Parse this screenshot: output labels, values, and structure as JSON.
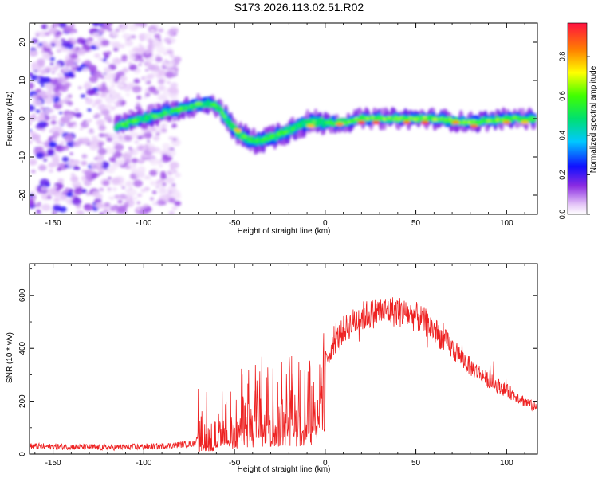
{
  "title": "S173.2026.113.02.51.R02",
  "chart_data": [
    {
      "type": "heatmap",
      "xlabel": "Height of straight line (km)",
      "ylabel": "Frequency (Hz)",
      "xlim": [
        -163,
        117
      ],
      "ylim": [
        -25,
        25
      ],
      "xticks": [
        "-150",
        "-100",
        "-50",
        "0",
        "50",
        "100"
      ],
      "xtick_values": [
        -150,
        -100,
        -50,
        0,
        50,
        100
      ],
      "yticks": [
        "-20",
        "-10",
        "0",
        "10",
        "20"
      ],
      "ytick_values": [
        -20,
        -10,
        0,
        10,
        20
      ],
      "colorbar": {
        "label": "Normalized spectral amplitude",
        "range": [
          0,
          0.97
        ],
        "ticks": [
          "0.0",
          "0.2",
          "0.4",
          "0.6",
          "0.8"
        ],
        "tick_values": [
          0.0,
          0.2,
          0.4,
          0.6,
          0.8
        ]
      },
      "ridge": {
        "description_points_x": [
          -115,
          -100,
          -85,
          -75,
          -68,
          -62,
          -57,
          -52,
          -47,
          -40,
          -30,
          -20,
          -10,
          0,
          10,
          20,
          40,
          60,
          80,
          100,
          115
        ],
        "description_points_y": [
          -2,
          0,
          2,
          3,
          4,
          4,
          2,
          -2,
          -4,
          -6,
          -5,
          -3,
          -1,
          -1,
          -1,
          0,
          0,
          0,
          -1,
          0,
          0
        ]
      }
    },
    {
      "type": "line",
      "xlabel": "Height of straight line (km)",
      "ylabel": "SNR (10 * v/v)",
      "xlim": [
        -163,
        117
      ],
      "ylim": [
        0,
        720
      ],
      "xticks": [
        "-150",
        "-100",
        "-50",
        "0",
        "50",
        "100"
      ],
      "xtick_values": [
        -150,
        -100,
        -50,
        0,
        50,
        100
      ],
      "yticks": [
        "0",
        "200",
        "400",
        "600"
      ],
      "ytick_values": [
        0,
        200,
        400,
        600
      ],
      "color": "#ee2222",
      "envelope": {
        "x": [
          -163,
          -120,
          -90,
          -72,
          -68,
          -60,
          -50,
          -45,
          -40,
          -35,
          -30,
          -25,
          -20,
          -15,
          -10,
          -5,
          0,
          5,
          10,
          20,
          30,
          40,
          50,
          55,
          60,
          70,
          80,
          90,
          100,
          110,
          117
        ],
        "y": [
          30,
          25,
          30,
          40,
          110,
          90,
          180,
          230,
          220,
          250,
          260,
          240,
          280,
          260,
          300,
          290,
          350,
          420,
          470,
          520,
          540,
          540,
          520,
          500,
          470,
          400,
          330,
          280,
          240,
          200,
          170
        ]
      }
    }
  ]
}
